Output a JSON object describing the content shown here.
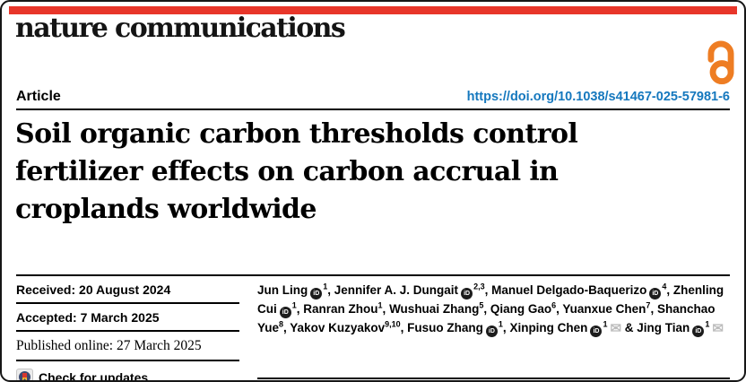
{
  "page": {
    "accent_red": "#e8362a",
    "oa_orange": "#ee7d23",
    "doi_blue": "#1578be"
  },
  "header": {
    "journal": "nature communications",
    "article_type": "Article",
    "doi": "https://doi.org/10.1038/s41467-025-57981-6"
  },
  "title": "Soil organic carbon thresholds control fertilizer effects on carbon accrual in croplands worldwide",
  "dates": {
    "received": "Received: 20 August 2024",
    "accepted": "Accepted: 7 March 2025",
    "published": "Published online: 27 March 2025"
  },
  "check_for_updates": "Check for updates",
  "authors": {
    "orcid_icon_label": "iD",
    "items": [
      {
        "name": "Jun Ling",
        "orcid": true,
        "sup": "1",
        "email": false,
        "joiner": ", "
      },
      {
        "name": "Jennifer A. J. Dungait",
        "orcid": true,
        "sup": "2,3",
        "email": false,
        "joiner": ", "
      },
      {
        "name": "Manuel Delgado-Baquerizo",
        "orcid": true,
        "sup": "4",
        "email": false,
        "joiner": ", "
      },
      {
        "name": "Zhenling Cui",
        "orcid": true,
        "sup": "1",
        "email": false,
        "joiner": ", "
      },
      {
        "name": "Ranran Zhou",
        "orcid": false,
        "sup": "1",
        "email": false,
        "joiner": ", "
      },
      {
        "name": "Wushuai Zhang",
        "orcid": false,
        "sup": "5",
        "email": false,
        "joiner": ", "
      },
      {
        "name": "Qiang Gao",
        "orcid": false,
        "sup": "6",
        "email": false,
        "joiner": ", "
      },
      {
        "name": "Yuanxue Chen",
        "orcid": false,
        "sup": "7",
        "email": false,
        "joiner": ", "
      },
      {
        "name": "Shanchao Yue",
        "orcid": false,
        "sup": "8",
        "email": false,
        "joiner": ", "
      },
      {
        "name": "Yakov Kuzyakov",
        "orcid": false,
        "sup": "9,10",
        "email": false,
        "joiner": ", "
      },
      {
        "name": "Fusuo Zhang",
        "orcid": true,
        "sup": "1",
        "email": false,
        "joiner": ", "
      },
      {
        "name": "Xinping Chen",
        "orcid": true,
        "sup": "1",
        "email": true,
        "joiner": " & "
      },
      {
        "name": "Jing Tian",
        "orcid": true,
        "sup": "1",
        "email": true,
        "joiner": ""
      }
    ]
  }
}
